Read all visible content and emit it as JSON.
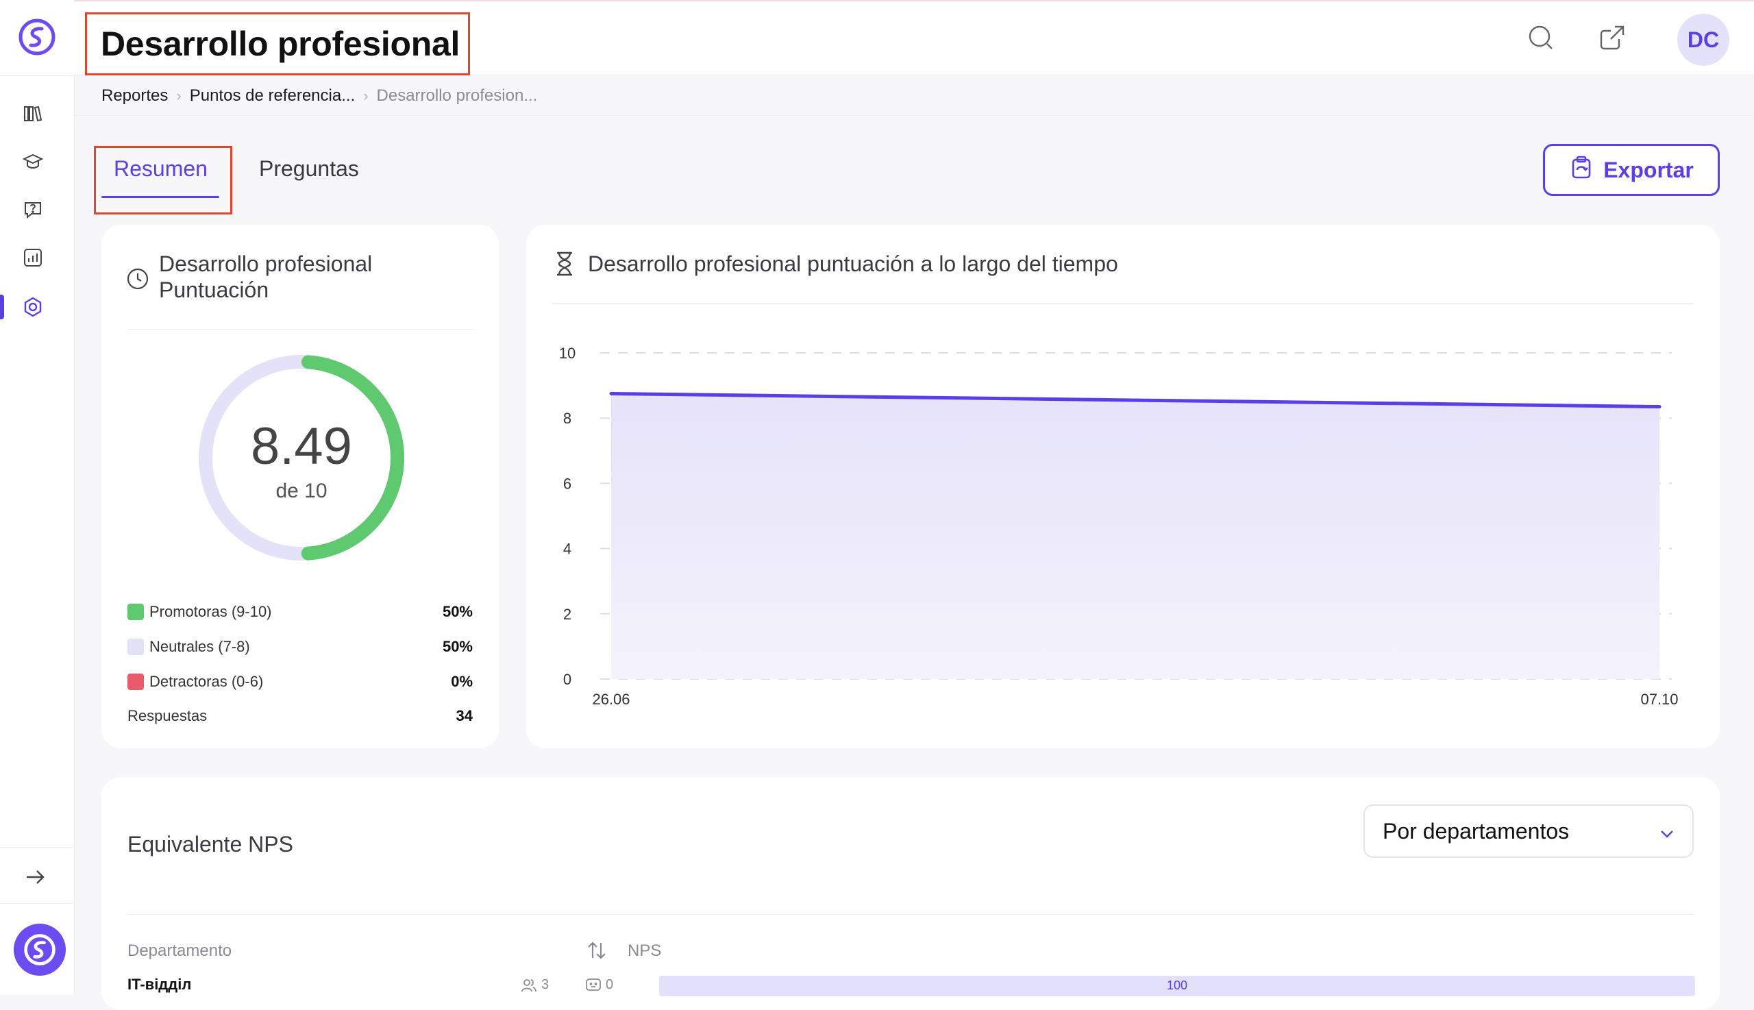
{
  "header": {
    "title": "Desarrollo profesional",
    "user_initials": "DC"
  },
  "breadcrumb": {
    "items": [
      "Reportes",
      "Puntos de referencia...",
      "Desarrollo profesion..."
    ]
  },
  "tabs": [
    {
      "label": "Resumen",
      "active": true
    },
    {
      "label": "Preguntas",
      "active": false
    }
  ],
  "toolbar": {
    "export_label": "Exportar"
  },
  "sidebar": {
    "items": [
      {
        "icon": "library-icon"
      },
      {
        "icon": "graduation-cap-icon"
      },
      {
        "icon": "question-bubble-icon"
      },
      {
        "icon": "analytics-icon"
      },
      {
        "icon": "benchmark-hexagon-icon",
        "active": true
      }
    ],
    "collapse_icon": "arrow-right-icon"
  },
  "score_card": {
    "title_line1": "Desarrollo profesional",
    "title_line2": "Puntuación",
    "value": "8.49",
    "value_sub": "de 10",
    "promoters_fraction": 0.5,
    "legend": [
      {
        "label": "Promotoras (9-10)",
        "value": "50%",
        "color": "#5ec96f"
      },
      {
        "label": "Neutrales (7-8)",
        "value": "50%",
        "color": "#e3e1f7"
      },
      {
        "label": "Detractoras (0-6)",
        "value": "0%",
        "color": "#ea5a6a"
      }
    ],
    "responses_label": "Respuestas",
    "responses_value": "34"
  },
  "chart_card": {
    "title": "Desarrollo profesional puntuación a lo largo del tiempo"
  },
  "chart_data": {
    "type": "area",
    "x": [
      "26.06",
      "07.10"
    ],
    "series": [
      {
        "values": [
          8.75,
          8.35
        ],
        "color": "#5b3ee6"
      }
    ],
    "ylim": [
      0,
      10
    ],
    "yticks": [
      "0",
      "2",
      "4",
      "6",
      "8",
      "10"
    ],
    "grid": true
  },
  "nps_card": {
    "title": "Equivalente NPS",
    "dropdown_value": "Por departamentos",
    "col_department": "Departamento",
    "col_nps": "NPS",
    "rows": [
      {
        "department": "IT-відділ",
        "members": "3",
        "comments": "0",
        "nps_label": "100",
        "nps": 100
      }
    ]
  },
  "colors": {
    "accent": "#5b3ee6",
    "highlight_border": "#e0452e",
    "promoters": "#5ec96f",
    "neutrals": "#e3e1f7",
    "detractors": "#ea5a6a"
  }
}
